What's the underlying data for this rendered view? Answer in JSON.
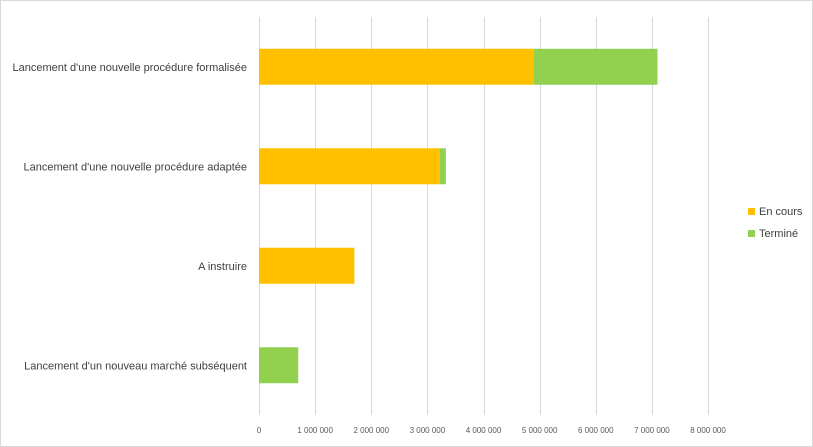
{
  "chart_data": {
    "type": "bar",
    "orientation": "horizontal",
    "stacked": true,
    "categories": [
      "Lancement d'une nouvelle procédure formalisée",
      "Lancement d'une nouvelle procédure adaptée",
      "A instruire",
      "Lancement d'un nouveau marché subséquent"
    ],
    "series": [
      {
        "name": "En cours",
        "color": "#FFC000",
        "values": [
          4900000,
          3220000,
          1700000,
          0
        ]
      },
      {
        "name": "Terminé",
        "color": "#92D050",
        "values": [
          2200000,
          110000,
          0,
          700000
        ]
      }
    ],
    "xlim": [
      0,
      8000000
    ],
    "xticks": [
      0,
      1000000,
      2000000,
      3000000,
      4000000,
      5000000,
      6000000,
      7000000,
      8000000
    ],
    "xtick_labels": [
      "0",
      "1 000 000",
      "2 000 000",
      "3 000 000",
      "4 000 000",
      "5 000 000",
      "6 000 000",
      "7 000 000",
      "8 000 000"
    ],
    "grid": true,
    "legend_position": "right",
    "title": "",
    "xlabel": "",
    "ylabel": ""
  }
}
